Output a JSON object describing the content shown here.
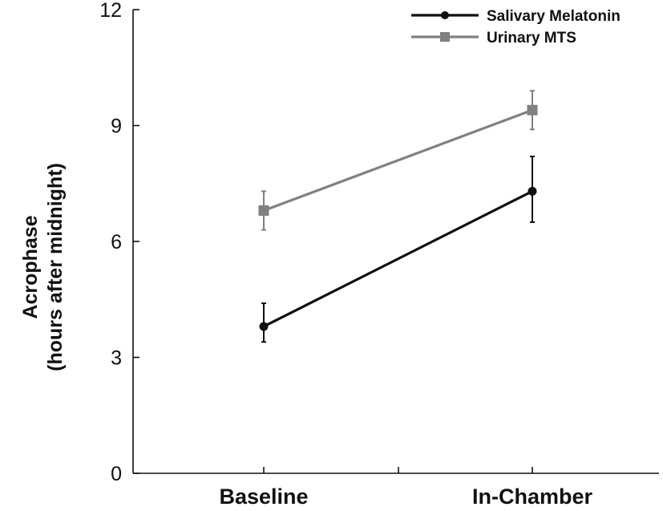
{
  "chart_data": {
    "type": "line",
    "categories": [
      "Baseline",
      "In-Chamber"
    ],
    "ylabel_lines": [
      "Acrophase",
      "(hours after midnight)"
    ],
    "xlabel": "",
    "ylim": [
      0,
      12
    ],
    "yticks": [
      "0",
      "3",
      "6",
      "9",
      "12"
    ],
    "grid": false,
    "legend_position": "top-right",
    "series": [
      {
        "name": "Salivary Melatonin",
        "color": "#111111",
        "marker": "circle",
        "values": [
          3.8,
          7.3
        ],
        "error": [
          [
            3.4,
            4.4
          ],
          [
            6.5,
            8.2
          ]
        ]
      },
      {
        "name": "Urinary MTS",
        "color": "#808080",
        "marker": "square",
        "values": [
          6.8,
          9.4
        ],
        "error": [
          [
            6.3,
            7.3
          ],
          [
            8.9,
            9.9
          ]
        ]
      }
    ]
  }
}
